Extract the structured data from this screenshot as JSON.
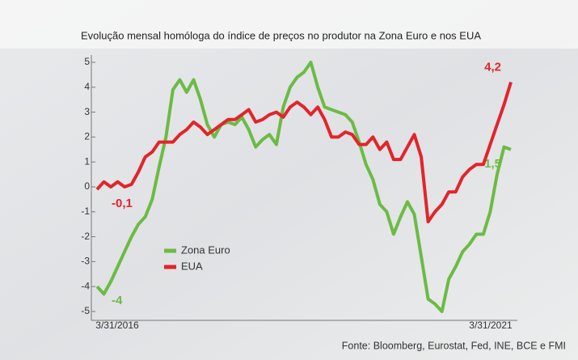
{
  "chart_data": {
    "type": "line",
    "title": "Evolução mensal homóloga do índice de preços no produtor na Zona Euro e nos EUA",
    "source": "Fonte: Bloomberg, Eurostat, Fed, INE, BCE e FMI",
    "categories": [
      "3/31/2016",
      null,
      null,
      null,
      null,
      null,
      null,
      null,
      null,
      null,
      null,
      null,
      null,
      null,
      null,
      null,
      null,
      null,
      null,
      null,
      null,
      null,
      null,
      null,
      null,
      null,
      null,
      null,
      null,
      null,
      null,
      null,
      null,
      null,
      null,
      null,
      null,
      null,
      null,
      null,
      null,
      null,
      null,
      null,
      null,
      null,
      null,
      null,
      null,
      null,
      null,
      null,
      null,
      null,
      null,
      null,
      null,
      null,
      null,
      null,
      "3/31/2021"
    ],
    "ylim": [
      -5,
      5
    ],
    "yticks": [
      -5,
      -4,
      -3,
      -2,
      -1,
      0,
      1,
      2,
      3,
      4,
      5
    ],
    "legend": "center-left",
    "series": [
      {
        "name": "Zona Euro",
        "color": "#6cbb43",
        "values": [
          -4.0,
          -4.3,
          -3.8,
          -3.2,
          -2.6,
          -2.0,
          -1.5,
          -1.2,
          -0.5,
          0.8,
          2.0,
          3.9,
          4.3,
          3.8,
          4.3,
          3.5,
          2.5,
          2.0,
          2.5,
          2.6,
          2.5,
          2.8,
          2.3,
          1.6,
          1.9,
          2.1,
          1.7,
          3.2,
          4.0,
          4.4,
          4.6,
          5.0,
          4.0,
          3.2,
          3.1,
          3.0,
          2.9,
          2.6,
          1.8,
          0.9,
          0.3,
          -0.7,
          -1.0,
          -1.9,
          -1.2,
          -0.6,
          -1.1,
          -2.8,
          -4.5,
          -4.7,
          -5.0,
          -3.7,
          -3.2,
          -2.6,
          -2.3,
          -1.9,
          -1.9,
          -1.0,
          0.5,
          1.6,
          1.5
        ],
        "value_labels": [
          "-4",
          null,
          null,
          null,
          null,
          null,
          null,
          null,
          null,
          null,
          null,
          null,
          null,
          null,
          null,
          null,
          null,
          null,
          null,
          null,
          null,
          null,
          null,
          null,
          null,
          null,
          null,
          null,
          null,
          null,
          null,
          null,
          null,
          null,
          null,
          null,
          null,
          null,
          null,
          null,
          null,
          null,
          null,
          null,
          null,
          null,
          null,
          null,
          null,
          null,
          null,
          null,
          null,
          null,
          null,
          null,
          null,
          null,
          null,
          null,
          "1,5"
        ]
      },
      {
        "name": "EUA",
        "color": "#e2242b",
        "values": [
          -0.1,
          0.2,
          0.0,
          0.2,
          0.0,
          0.1,
          0.6,
          1.2,
          1.4,
          1.8,
          1.8,
          1.8,
          2.1,
          2.3,
          2.6,
          2.4,
          2.1,
          2.3,
          2.5,
          2.7,
          2.7,
          2.9,
          3.1,
          2.6,
          2.7,
          2.9,
          3.0,
          2.8,
          3.2,
          3.4,
          3.2,
          2.9,
          3.2,
          2.7,
          2.0,
          2.0,
          2.2,
          2.1,
          1.7,
          1.7,
          2.0,
          1.5,
          1.8,
          1.1,
          1.1,
          1.6,
          2.1,
          1.2,
          -1.4,
          -1.0,
          -0.7,
          -0.2,
          -0.2,
          0.4,
          0.7,
          0.9,
          0.9,
          1.7,
          2.5,
          3.3,
          4.2
        ],
        "value_labels": [
          "-0,1",
          null,
          null,
          null,
          null,
          null,
          null,
          null,
          null,
          null,
          null,
          null,
          null,
          null,
          null,
          null,
          null,
          null,
          null,
          null,
          null,
          null,
          null,
          null,
          null,
          null,
          null,
          null,
          null,
          null,
          null,
          null,
          null,
          null,
          null,
          null,
          null,
          null,
          null,
          null,
          null,
          null,
          null,
          null,
          null,
          null,
          null,
          null,
          null,
          null,
          null,
          null,
          null,
          null,
          null,
          null,
          null,
          null,
          null,
          null,
          "4,2"
        ]
      }
    ]
  }
}
